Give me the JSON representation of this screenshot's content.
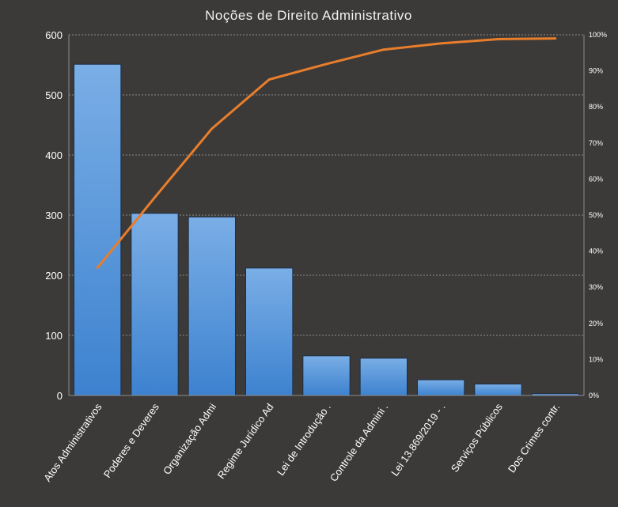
{
  "chart_data": {
    "type": "bar",
    "title": "Noções de Direito Administrativo",
    "categories": [
      "Atos Administrativos",
      "Poderes e Deveres",
      "Organização Admi",
      "Regime Jurídico Ad",
      "Lei de Introdução .",
      "Controle da Admini .",
      "Lei 13.869/2019 - .",
      "Serviços Públicos",
      "Dos Crimes contr."
    ],
    "series": [
      {
        "values": [
          551,
          303,
          297,
          212,
          66,
          62,
          26,
          19,
          3
        ]
      },
      {
        "axis": "right",
        "type": "line",
        "values": [
          35.4,
          54.9,
          74.0,
          87.6,
          91.9,
          95.9,
          97.6,
          98.8,
          99.0
        ]
      }
    ],
    "ylim": [
      0,
      600
    ],
    "yticks": [
      "0",
      "100",
      "200",
      "300",
      "400",
      "500",
      "600"
    ],
    "y2lim": [
      0,
      100
    ],
    "y2ticks": [
      "0%",
      "10%",
      "20%",
      "30%",
      "40%",
      "50%",
      "60%",
      "70%",
      "80%",
      "90%",
      "100%"
    ],
    "grid": true,
    "legend": "none",
    "colors": {
      "background": "#3b3a39",
      "bar_top": "#7aaee6",
      "bar_bottom": "#3d82cf",
      "line": "#e87e2c"
    }
  }
}
